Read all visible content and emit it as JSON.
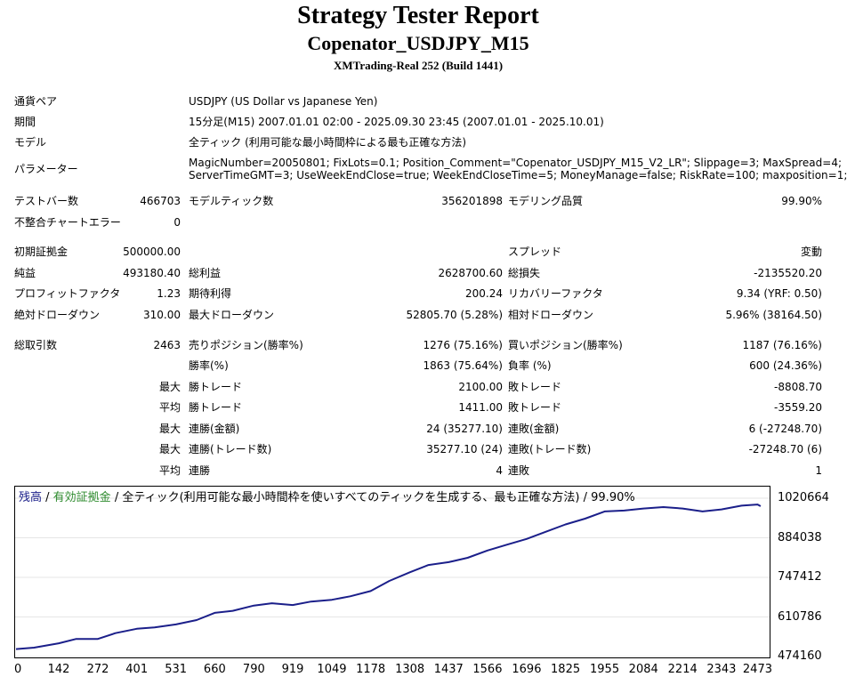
{
  "header": {
    "title": "Strategy Tester Report",
    "subtitle": "Copenator_USDJPY_M15",
    "build": "XMTrading-Real 252 (Build 1441)"
  },
  "info": {
    "pair_label": "通貨ペア",
    "pair_value": "USDJPY (US Dollar vs Japanese Yen)",
    "period_label": "期間",
    "period_value": "15分足(M15) 2007.01.01 02:00 - 2025.09.30 23:45 (2007.01.01 - 2025.10.01)",
    "model_label": "モデル",
    "model_value": "全ティック (利用可能な最小時間枠による最も正確な方法)",
    "params_label": "パラメーター",
    "params_line1": "MagicNumber=20050801; FixLots=0.1; Position_Comment=\"Copenator_USDJPY_M15_V2_LR\"; Slippage=3; MaxSpread=4;",
    "params_line2": "ServerTimeGMT=3; UseWeekEndClose=true; WeekEndCloseTime=5; MoneyManage=false; RiskRate=100; maxposition=1;"
  },
  "stats": {
    "bars_label": "テストバー数",
    "bars_value": "466703",
    "ticks_label": "モデルティック数",
    "ticks_value": "356201898",
    "quality_label": "モデリング品質",
    "quality_value": "99.90%",
    "mismatch_label": "不整合チャートエラー",
    "mismatch_value": "0",
    "deposit_label": "初期証拠金",
    "deposit_value": "500000.00",
    "spread_label": "スプレッド",
    "spread_value": "変動",
    "net_label": "純益",
    "net_value": "493180.40",
    "gross_profit_label": "総利益",
    "gross_profit_value": "2628700.60",
    "gross_loss_label": "総損失",
    "gross_loss_value": "-2135520.20",
    "pf_label": "プロフィットファクタ",
    "pf_value": "1.23",
    "expected_label": "期待利得",
    "expected_value": "200.24",
    "recovery_label": "リカバリーファクタ",
    "recovery_value": "9.34 (YRF: 0.50)",
    "abs_dd_label": "絶対ドローダウン",
    "abs_dd_value": "310.00",
    "max_dd_label": "最大ドローダウン",
    "max_dd_value": "52805.70 (5.28%)",
    "rel_dd_label": "相対ドローダウン",
    "rel_dd_value": "5.96% (38164.50)",
    "trades_label": "総取引数",
    "trades_value": "2463",
    "short_label": "売りポジション(勝率%)",
    "short_value": "1276 (75.16%)",
    "long_label": "買いポジション(勝率%)",
    "long_value": "1187 (76.16%)",
    "winrate_label": "勝率(%)",
    "winrate_value": "1863 (75.64%)",
    "lossrate_label": "負率 (%)",
    "lossrate_value": "600 (24.36%)",
    "max_label": "最大",
    "avg_label": "平均",
    "win_trade_label": "勝トレード",
    "loss_trade_label": "敗トレード",
    "max_win_value": "2100.00",
    "max_loss_value": "-8808.70",
    "avg_win_value": "1411.00",
    "avg_loss_value": "-3559.20",
    "consec_win_amt_label": "連勝(金額)",
    "consec_win_amt_value": "24 (35277.10)",
    "consec_loss_amt_label": "連敗(金額)",
    "consec_loss_amt_value": "6 (-27248.70)",
    "consec_win_trd_label": "連勝(トレード数)",
    "consec_win_trd_value": "35277.10 (24)",
    "consec_loss_trd_label": "連敗(トレード数)",
    "consec_loss_trd_value": "-27248.70 (6)",
    "avg_consec_win_label": "連勝",
    "avg_consec_win_value": "4",
    "avg_consec_loss_label": "連敗",
    "avg_consec_loss_value": "1"
  },
  "chart": {
    "legend_balance": "残高",
    "legend_sep1": " / ",
    "legend_equity": "有効証拠金",
    "legend_sep2": " / ",
    "legend_rest": "全ティック(利用可能な最小時間枠を使いすべてのティックを生成する、最も正確な方法) / 99.90%"
  },
  "chart_data": {
    "type": "line",
    "series": [
      {
        "name": "残高",
        "x": [
          0,
          60,
          142,
          200,
          272,
          330,
          401,
          460,
          531,
          600,
          660,
          720,
          790,
          850,
          919,
          980,
          1049,
          1110,
          1178,
          1240,
          1308,
          1370,
          1437,
          1500,
          1566,
          1630,
          1696,
          1760,
          1825,
          1890,
          1955,
          2020,
          2084,
          2150,
          2214,
          2280,
          2343,
          2410,
          2463,
          2473
        ],
        "values": [
          500000,
          505000,
          520000,
          535000,
          535000,
          555000,
          570000,
          575000,
          585000,
          600000,
          625000,
          632000,
          650000,
          658000,
          652000,
          664000,
          670000,
          682000,
          700000,
          735000,
          765000,
          790000,
          800000,
          815000,
          840000,
          860000,
          880000,
          905000,
          930000,
          950000,
          975000,
          978000,
          985000,
          990000,
          985000,
          975000,
          982000,
          995000,
          999000,
          993180
        ]
      }
    ],
    "x_ticks": [
      0,
      142,
      272,
      401,
      531,
      660,
      790,
      919,
      1049,
      1178,
      1308,
      1437,
      1566,
      1696,
      1825,
      1955,
      2084,
      2214,
      2343,
      2473
    ],
    "y_ticks": [
      474160,
      610786,
      747412,
      884038,
      1020664
    ],
    "xlim": [
      0,
      2500
    ],
    "ylim": [
      474160,
      1020664
    ],
    "line_color": "#1b1f8a",
    "legend_balance_color": "#1b1f8a",
    "legend_equity_color": "#2e8b2e"
  }
}
